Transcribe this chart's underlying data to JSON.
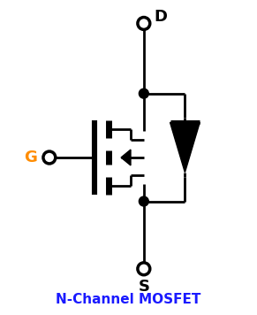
{
  "title": "N-Channel MOSFET",
  "label_D": "D",
  "label_G": "G",
  "label_S": "S",
  "label_color_G": "#FF8C00",
  "label_color_D": "#000000",
  "label_color_S": "#000000",
  "label_color_title": "#1a1aff",
  "bg_color": "#FFFFFF",
  "line_color": "#000000",
  "lw": 2.0,
  "figsize": [
    2.91,
    3.56
  ],
  "dpi": 100
}
